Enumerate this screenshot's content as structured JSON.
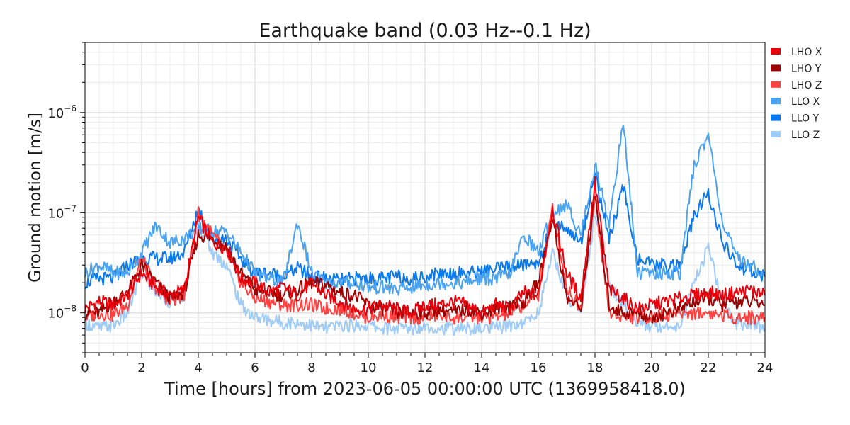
{
  "chart_data": {
    "type": "line",
    "title": "Earthquake band (0.03 Hz--0.1 Hz)",
    "xlabel": "Time [hours] from 2023-06-05 00:00:00 UTC (1369958418.0)",
    "ylabel": "Ground motion [m/s]",
    "xlim": [
      0,
      24
    ],
    "ylim": [
      4e-09,
      5e-06
    ],
    "yscale": "log",
    "xticks": [
      "0",
      "2",
      "4",
      "6",
      "8",
      "10",
      "12",
      "14",
      "16",
      "18",
      "20",
      "22",
      "24"
    ],
    "yticks": [
      {
        "base": "10",
        "exp": "−8",
        "value": 1e-08
      },
      {
        "base": "10",
        "exp": "−7",
        "value": 1e-07
      },
      {
        "base": "10",
        "exp": "−6",
        "value": 1e-06
      }
    ],
    "grid": true,
    "legend_position": "right",
    "x": [
      0,
      0.5,
      1,
      1.5,
      2,
      2.5,
      3,
      3.5,
      4,
      4.5,
      5,
      5.5,
      6,
      6.5,
      7,
      7.5,
      8,
      8.5,
      9,
      9.5,
      10,
      10.5,
      11,
      11.5,
      12,
      12.5,
      13,
      13.5,
      14,
      14.5,
      15,
      15.5,
      16,
      16.5,
      17,
      17.5,
      18,
      18.5,
      19,
      19.5,
      20,
      20.5,
      21,
      21.5,
      22,
      22.5,
      23,
      23.5,
      24
    ],
    "series": [
      {
        "name": "LHO X",
        "color": "#e8000b",
        "values": [
          1.1e-08,
          1.3e-08,
          1.2e-08,
          1.5e-08,
          2.5e-08,
          1.8e-08,
          1.5e-08,
          1.7e-08,
          9e-08,
          5e-08,
          4.5e-08,
          2.2e-08,
          2e-08,
          1.6e-08,
          1.8e-08,
          1.5e-08,
          2e-08,
          1.5e-08,
          1.3e-08,
          1.1e-08,
          1.1e-08,
          1.2e-08,
          1.1e-08,
          1e-08,
          1.2e-08,
          1.2e-08,
          1.3e-08,
          1.2e-08,
          1e-08,
          1.2e-08,
          1.1e-08,
          1.6e-08,
          1.5e-08,
          1.1e-07,
          2.5e-08,
          1.4e-08,
          2e-07,
          1.7e-08,
          1.4e-08,
          1.1e-08,
          1.2e-08,
          1.3e-08,
          1.4e-08,
          1.5e-08,
          1.6e-08,
          1.5e-08,
          1.6e-08,
          1.7e-08,
          1.5e-08
        ]
      },
      {
        "name": "LHO Y",
        "color": "#a00000",
        "values": [
          1e-08,
          1e-08,
          1.3e-08,
          1.6e-08,
          3e-08,
          2e-08,
          1.4e-08,
          1.6e-08,
          6e-08,
          5.5e-08,
          4.5e-08,
          2.5e-08,
          1.7e-08,
          1.6e-08,
          1.5e-08,
          1.7e-08,
          2e-08,
          1.9e-08,
          1.6e-08,
          1.5e-08,
          1.2e-08,
          1.1e-08,
          1e-08,
          1e-08,
          1e-08,
          1.1e-08,
          1e-08,
          1.1e-08,
          1e-08,
          1.1e-08,
          1.2e-08,
          1.3e-08,
          2e-08,
          9e-08,
          1.4e-08,
          1.1e-08,
          1.5e-07,
          1.2e-08,
          1e-08,
          1e-08,
          9e-09,
          1e-08,
          1.1e-08,
          1.3e-08,
          1.4e-08,
          1.2e-08,
          1.3e-08,
          1.3e-08,
          1.2e-08
        ]
      },
      {
        "name": "LHO Z",
        "color": "#ff4040",
        "values": [
          9e-09,
          1e-08,
          9.5e-09,
          1.2e-08,
          3.5e-08,
          1.8e-08,
          1.3e-08,
          1.5e-08,
          1e-07,
          6e-08,
          4e-08,
          2e-08,
          1.4e-08,
          1.3e-08,
          1.2e-08,
          1.2e-08,
          1.2e-08,
          1.1e-08,
          1.1e-08,
          1e-08,
          9e-09,
          9.5e-09,
          9e-09,
          9e-09,
          9e-09,
          9.5e-09,
          9e-09,
          9e-09,
          9e-09,
          9e-09,
          1e-08,
          1.2e-08,
          1.5e-08,
          1.1e-07,
          1.8e-08,
          1.1e-08,
          1.4e-07,
          1e-08,
          9e-09,
          9e-09,
          9e-09,
          9.5e-09,
          1e-08,
          1e-08,
          1e-08,
          9.5e-09,
          9e-09,
          9e-09,
          9e-09
        ]
      },
      {
        "name": "LLO X",
        "color": "#4aa3f0",
        "values": [
          2.5e-08,
          3e-08,
          2.5e-08,
          2.5e-08,
          4e-08,
          7.5e-08,
          5e-08,
          5.5e-08,
          7e-08,
          6.5e-08,
          6.5e-08,
          4e-08,
          2.5e-08,
          2.2e-08,
          2e-08,
          8e-08,
          2.5e-08,
          2e-08,
          2e-08,
          2e-08,
          1.8e-08,
          1.8e-08,
          1.7e-08,
          1.8e-08,
          1.9e-08,
          2e-08,
          2e-08,
          2e-08,
          2.2e-08,
          2.2e-08,
          2.5e-08,
          6e-08,
          4e-08,
          1e-07,
          1.2e-07,
          6e-08,
          3e-07,
          8e-08,
          8e-07,
          2.5e-08,
          2.5e-08,
          2.5e-08,
          2.5e-08,
          3e-07,
          6e-07,
          8e-08,
          3.5e-08,
          3e-08,
          2.5e-08
        ]
      },
      {
        "name": "LLO Y",
        "color": "#0a78ee",
        "values": [
          2e-08,
          2.2e-08,
          2.2e-08,
          3e-08,
          3.5e-08,
          3.5e-08,
          3.5e-08,
          4e-08,
          1.1e-07,
          5.5e-08,
          5.5e-08,
          3.5e-08,
          2.5e-08,
          2.5e-08,
          2.3e-08,
          2.8e-08,
          2.3e-08,
          2.2e-08,
          2.1e-08,
          2.2e-08,
          2.2e-08,
          2.2e-08,
          2.3e-08,
          2.2e-08,
          2.3e-08,
          2.5e-08,
          2.5e-08,
          2.5e-08,
          2.6e-08,
          2.7e-08,
          2.9e-08,
          3e-08,
          3.2e-08,
          8e-08,
          7e-08,
          5e-08,
          2.5e-07,
          5.5e-08,
          1.8e-07,
          3.5e-08,
          3e-08,
          3e-08,
          3e-08,
          9e-08,
          1.6e-07,
          5e-08,
          3e-08,
          2.6e-08,
          2.3e-08
        ]
      },
      {
        "name": "LLO Z",
        "color": "#9ecbf7",
        "values": [
          8e-09,
          7e-09,
          7.5e-09,
          1e-08,
          2.5e-08,
          1.6e-08,
          1.3e-08,
          1.5e-08,
          8e-08,
          4e-08,
          3e-08,
          1.2e-08,
          9e-09,
          8.5e-09,
          8e-09,
          8e-09,
          7.5e-09,
          7e-09,
          7.5e-09,
          7.5e-09,
          7.5e-09,
          7e-09,
          7e-09,
          7e-09,
          7.5e-09,
          7e-09,
          7e-09,
          7e-09,
          7e-09,
          7e-09,
          7.5e-09,
          8e-09,
          1e-08,
          4e-08,
          1.5e-08,
          1e-08,
          1e-07,
          2e-08,
          1.2e-08,
          8e-09,
          7.5e-09,
          7.5e-09,
          7.5e-09,
          2e-08,
          4.5e-08,
          1.2e-08,
          8e-09,
          7.5e-09,
          7e-09
        ]
      }
    ]
  }
}
